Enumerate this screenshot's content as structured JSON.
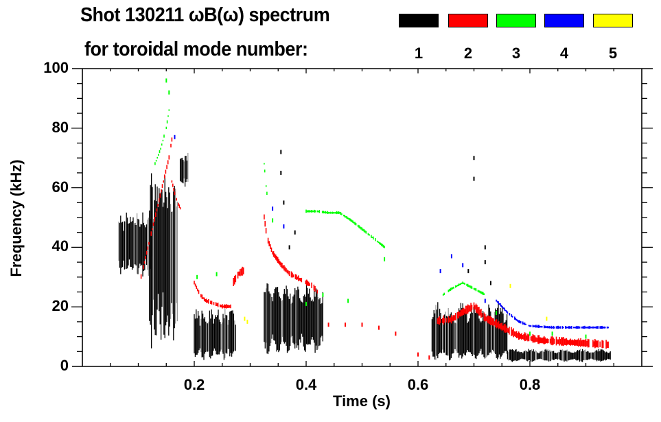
{
  "title": {
    "line1": "Shot 130211 ωB(ω) spectrum",
    "line2": "for toroidal mode number:"
  },
  "legend": [
    {
      "mode": "1",
      "color": "#000000"
    },
    {
      "mode": "2",
      "color": "#ff0000"
    },
    {
      "mode": "3",
      "color": "#00ff00"
    },
    {
      "mode": "4",
      "color": "#0000ff"
    },
    {
      "mode": "5",
      "color": "#ffff00"
    }
  ],
  "chart_data": {
    "type": "scatter",
    "subtype": "spectrogram",
    "title": "Shot 130211 ωB(ω) spectrum for toroidal mode number: 1 2 3 4 5",
    "xlabel": "Time (s)",
    "ylabel": "Frequency (kHz)",
    "xlim": [
      0.0,
      1.0
    ],
    "ylim": [
      0,
      100
    ],
    "xticks": [
      0.2,
      0.4,
      0.6,
      0.8
    ],
    "xtick_labels": [
      "0.2",
      "0.4",
      "0.6",
      "0.8"
    ],
    "x_minor_step": 0.05,
    "yticks": [
      0,
      20,
      40,
      60,
      80,
      100
    ],
    "ytick_labels": [
      "0",
      "20",
      "40",
      "60",
      "80",
      "100"
    ],
    "y_minor_step": 5,
    "grid": false,
    "legend_position": "top-right",
    "series": [
      {
        "name": "n=1",
        "mode": 1,
        "color": "#000000",
        "bursts": [
          {
            "t": [
              0.065,
              0.125
            ],
            "f_low": 30,
            "f_high": 52,
            "f_center": 42
          },
          {
            "t": [
              0.12,
              0.17
            ],
            "f_low": 5,
            "f_high": 66,
            "f_center": 40
          },
          {
            "t": [
              0.175,
              0.19
            ],
            "f_low": 60,
            "f_high": 72,
            "f_center": 66
          },
          {
            "t": [
              0.2,
              0.275
            ],
            "f_low": 2,
            "f_high": 20,
            "f_center": 10
          },
          {
            "t": [
              0.325,
              0.43
            ],
            "f_low": 4,
            "f_high": 28,
            "f_center": 16
          },
          {
            "t": [
              0.625,
              0.76
            ],
            "f_low": 2,
            "f_high": 22,
            "f_center": 9
          },
          {
            "t": [
              0.76,
              0.945
            ],
            "f_low": 1.5,
            "f_high": 6,
            "f_center": 3.5
          }
        ],
        "points": [
          {
            "t": 0.355,
            "f": 72
          },
          {
            "t": 0.355,
            "f": 65
          },
          {
            "t": 0.36,
            "f": 55
          },
          {
            "t": 0.37,
            "f": 40
          },
          {
            "t": 0.38,
            "f": 45
          },
          {
            "t": 0.7,
            "f": 70
          },
          {
            "t": 0.7,
            "f": 63
          },
          {
            "t": 0.72,
            "f": 40
          },
          {
            "t": 0.72,
            "f": 35
          },
          {
            "t": 0.69,
            "f": 32
          },
          {
            "t": 0.73,
            "f": 28
          }
        ]
      },
      {
        "name": "n=2",
        "mode": 2,
        "color": "#ff0000",
        "tracks": [
          {
            "t": [
              0.105,
              0.115,
              0.125,
              0.135,
              0.145,
              0.155,
              0.16
            ],
            "f": [
              30,
              38,
              46,
              54,
              62,
              70,
              76
            ],
            "width": 3
          },
          {
            "t": [
              0.16,
              0.165,
              0.17,
              0.175
            ],
            "f": [
              62,
              58,
              55,
              53
            ],
            "width": 3
          },
          {
            "t": [
              0.2,
              0.21,
              0.22,
              0.235,
              0.25,
              0.265
            ],
            "f": [
              28,
              24,
              22,
              21,
              20,
              20
            ],
            "width": 3
          },
          {
            "t": [
              0.27,
              0.28,
              0.29
            ],
            "f": [
              28,
              31,
              32
            ],
            "width": 6
          },
          {
            "t": [
              0.325,
              0.33,
              0.34,
              0.355,
              0.37,
              0.39,
              0.41,
              0.42
            ],
            "f": [
              50,
              43,
              38,
              34,
              31,
              29,
              27,
              25
            ],
            "width": 4
          },
          {
            "t": [
              0.635,
              0.66,
              0.68,
              0.7,
              0.72,
              0.75,
              0.78,
              0.82,
              0.86,
              0.9,
              0.94
            ],
            "f": [
              15,
              15.5,
              18,
              20,
              16,
              13,
              10,
              8.5,
              8,
              7.5,
              7
            ],
            "width": 6
          }
        ],
        "points": [
          {
            "t": 0.44,
            "f": 14
          },
          {
            "t": 0.47,
            "f": 14
          },
          {
            "t": 0.5,
            "f": 14
          },
          {
            "t": 0.53,
            "f": 13
          },
          {
            "t": 0.56,
            "f": 11
          },
          {
            "t": 0.6,
            "f": 4
          },
          {
            "t": 0.62,
            "f": 3
          }
        ]
      },
      {
        "name": "n=3",
        "mode": 3,
        "color": "#00ff00",
        "tracks": [
          {
            "t": [
              0.13,
              0.14,
              0.15,
              0.155
            ],
            "f": [
              68,
              73,
              80,
              86
            ],
            "width": 2
          },
          {
            "t": [
              0.325,
              0.327,
              0.33
            ],
            "f": [
              68,
              63,
              58
            ],
            "width": 2
          },
          {
            "t": [
              0.4,
              0.42,
              0.44,
              0.46,
              0.48,
              0.5,
              0.52,
              0.54
            ],
            "f": [
              52,
              52,
              51.5,
              51.5,
              49,
              46,
              43,
              40
            ],
            "width": 2
          },
          {
            "t": [
              0.645,
              0.66,
              0.68,
              0.7,
              0.72
            ],
            "f": [
              24,
              26,
              28,
              26,
              24
            ],
            "width": 2
          }
        ],
        "points": [
          {
            "t": 0.15,
            "f": 96
          },
          {
            "t": 0.155,
            "f": 92
          },
          {
            "t": 0.205,
            "f": 30
          },
          {
            "t": 0.24,
            "f": 31
          },
          {
            "t": 0.34,
            "f": 49
          },
          {
            "t": 0.4,
            "f": 21
          },
          {
            "t": 0.43,
            "f": 24
          },
          {
            "t": 0.475,
            "f": 22
          },
          {
            "t": 0.54,
            "f": 36
          },
          {
            "t": 0.8,
            "f": 11
          },
          {
            "t": 0.84,
            "f": 11
          },
          {
            "t": 0.9,
            "f": 10
          },
          {
            "t": 0.74,
            "f": 18
          }
        ]
      },
      {
        "name": "n=4",
        "mode": 4,
        "color": "#0000ff",
        "tracks": [
          {
            "t": [
              0.74,
              0.76,
              0.78,
              0.8,
              0.84,
              0.88,
              0.92,
              0.94
            ],
            "f": [
              22,
              18,
              15,
              13.5,
              13,
              13,
              13,
              13
            ],
            "width": 2
          }
        ],
        "points": [
          {
            "t": 0.165,
            "f": 77
          },
          {
            "t": 0.34,
            "f": 53
          },
          {
            "t": 0.36,
            "f": 47
          },
          {
            "t": 0.64,
            "f": 32
          },
          {
            "t": 0.66,
            "f": 37
          },
          {
            "t": 0.68,
            "f": 34
          },
          {
            "t": 0.72,
            "f": 22
          }
        ]
      },
      {
        "name": "n=5",
        "mode": 5,
        "color": "#ffff00",
        "points": [
          {
            "t": 0.29,
            "f": 16
          },
          {
            "t": 0.295,
            "f": 15
          },
          {
            "t": 0.765,
            "f": 27
          },
          {
            "t": 0.83,
            "f": 16
          }
        ]
      }
    ]
  }
}
